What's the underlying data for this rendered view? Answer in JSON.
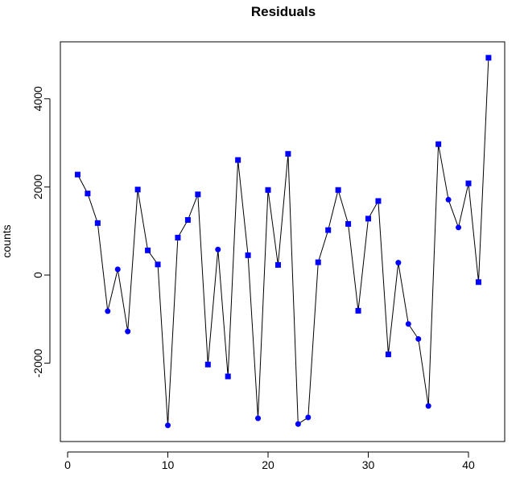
{
  "chart_data": {
    "type": "line",
    "title": "Residuals",
    "xlabel": "",
    "ylabel": "counts",
    "xlim": [
      1,
      42
    ],
    "ylim": [
      -3400,
      4900
    ],
    "x_ticks": [
      0,
      10,
      20,
      30,
      40
    ],
    "y_ticks": [
      -2000,
      0,
      2000,
      4000
    ],
    "grid": false,
    "series": [
      {
        "x": [
          1,
          2,
          3,
          4,
          5,
          6,
          7,
          8,
          9,
          10,
          11,
          12,
          13,
          14,
          15,
          16,
          17,
          18,
          19,
          20,
          21,
          22,
          23,
          24,
          25,
          26,
          27,
          28,
          29,
          30,
          31,
          32,
          33,
          34,
          35,
          36,
          37,
          38,
          39,
          40,
          41,
          42
        ],
        "values": [
          2280,
          1850,
          1180,
          -820,
          130,
          -1280,
          1940,
          560,
          240,
          -3410,
          850,
          1250,
          1830,
          -2030,
          580,
          -2300,
          2610,
          450,
          -3250,
          1930,
          230,
          2750,
          -3380,
          -3230,
          290,
          1020,
          1930,
          1160,
          -810,
          1280,
          1680,
          -1800,
          280,
          -1110,
          -1450,
          -2970,
          2970,
          1710,
          1080,
          2080,
          -160,
          4930
        ],
        "marker_shapes": [
          "square",
          "square",
          "square",
          "circle",
          "circle",
          "circle",
          "square",
          "square",
          "square",
          "circle",
          "square",
          "square",
          "square",
          "square",
          "circle",
          "square",
          "square",
          "square",
          "circle",
          "square",
          "square",
          "square",
          "circle",
          "circle",
          "square",
          "square",
          "square",
          "square",
          "square",
          "square",
          "square",
          "square",
          "circle",
          "circle",
          "circle",
          "circle",
          "square",
          "circle",
          "circle",
          "square",
          "square",
          "square"
        ]
      }
    ],
    "colors": {
      "line": "#000000",
      "marker": "#0000ff",
      "frame": "#000000"
    }
  }
}
